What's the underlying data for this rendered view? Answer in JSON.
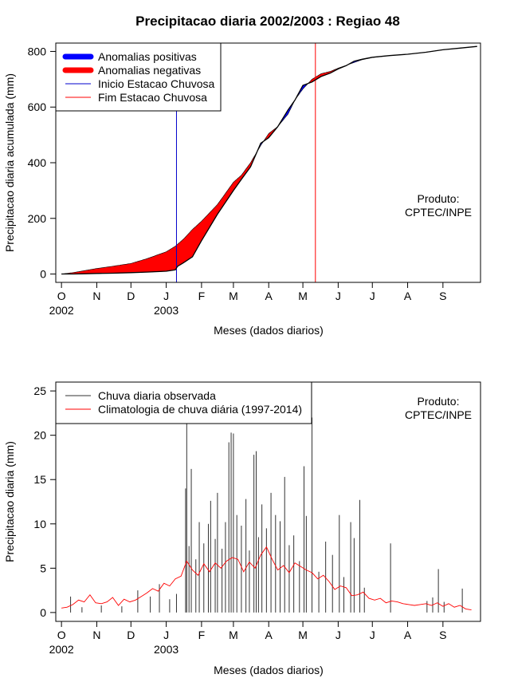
{
  "chart_data": [
    {
      "type": "area",
      "title": "Precipitacao diaria 2002/2003 : Regiao 48",
      "xlabel": "Meses (dados diarios)",
      "ylabel": "Precipitacao diaria acumulada (mm)",
      "ylim": [
        -30,
        830
      ],
      "yticks": [
        0,
        200,
        400,
        600,
        800
      ],
      "xlim_days": [
        -5,
        368
      ],
      "month_ticks": [
        {
          "label": "O",
          "day": 0
        },
        {
          "label": "N",
          "day": 31
        },
        {
          "label": "D",
          "day": 61
        },
        {
          "label": "J",
          "day": 92
        },
        {
          "label": "F",
          "day": 123
        },
        {
          "label": "M",
          "day": 151
        },
        {
          "label": "A",
          "day": 182
        },
        {
          "label": "M",
          "day": 212
        },
        {
          "label": "J",
          "day": 243
        },
        {
          "label": "J",
          "day": 273
        },
        {
          "label": "A",
          "day": 304
        },
        {
          "label": "S",
          "day": 335
        }
      ],
      "year_ticks": [
        {
          "label": "2002",
          "day": 0
        },
        {
          "label": "2003",
          "day": 92
        }
      ],
      "legend": [
        {
          "label": "Anomalias positivas",
          "color": "#0000ff"
        },
        {
          "label": "Anomalias negativas",
          "color": "#ff0000"
        },
        {
          "label": "Inicio Estacao Chuvosa",
          "color": "#0000cc"
        },
        {
          "label": "Fim Estacao Chuvosa",
          "color": "#ff0000"
        }
      ],
      "legend_position": "top-left",
      "credit": [
        "Produto:",
        "CPTEC/INPE"
      ],
      "rainy_season_start_day": 101,
      "rainy_season_end_day": 223,
      "observed_cumulative": {
        "days": [
          0,
          10,
          20,
          31,
          45,
          61,
          75,
          92,
          100,
          102,
          107,
          115,
          123,
          137,
          151,
          158,
          166,
          175,
          182,
          190,
          199,
          205,
          212,
          220,
          228,
          236,
          243,
          250,
          257,
          264,
          273,
          288,
          304,
          320,
          335,
          350,
          365
        ],
        "values": [
          0,
          0,
          1,
          2,
          3,
          5,
          7,
          10,
          15,
          28,
          40,
          62,
          120,
          215,
          300,
          340,
          385,
          470,
          490,
          530,
          590,
          625,
          678,
          690,
          710,
          722,
          737,
          749,
          765,
          772,
          779,
          785,
          790,
          797,
          806,
          812,
          818
        ]
      },
      "climatology_cumulative": {
        "days": [
          0,
          10,
          20,
          31,
          45,
          61,
          75,
          92,
          100,
          107,
          115,
          123,
          137,
          151,
          158,
          166,
          175,
          182,
          190,
          199,
          205,
          212,
          220,
          228,
          236,
          243,
          250,
          257,
          264,
          273,
          288,
          304,
          320,
          335,
          350,
          365
        ],
        "values": [
          0,
          5,
          12,
          20,
          28,
          38,
          55,
          80,
          100,
          125,
          160,
          190,
          250,
          330,
          355,
          400,
          462,
          505,
          530,
          575,
          625,
          665,
          700,
          720,
          728,
          740,
          750,
          760,
          770,
          778,
          785,
          790,
          797,
          806,
          812,
          818
        ]
      }
    },
    {
      "type": "line",
      "xlabel": "Meses (dados diarios)",
      "ylabel": "Precipitacao diaria (mm)",
      "ylim": [
        -1,
        26
      ],
      "yticks": [
        0,
        5,
        10,
        15,
        20,
        25
      ],
      "xlim_days": [
        -5,
        368
      ],
      "legend": [
        {
          "label": "Chuva diaria observada",
          "color": "#333333"
        },
        {
          "label": "Climatologia de chuva diária (1997-2014)",
          "color": "#ff0000"
        }
      ],
      "legend_position": "top-left",
      "credit": [
        "Produto:",
        "CPTEC/INPE"
      ],
      "observed_daily_peaks": [
        {
          "day": 8,
          "value": 1.8
        },
        {
          "day": 18,
          "value": 0.6
        },
        {
          "day": 35,
          "value": 0.8
        },
        {
          "day": 53,
          "value": 0.7
        },
        {
          "day": 67,
          "value": 2.5
        },
        {
          "day": 78,
          "value": 1.8
        },
        {
          "day": 86,
          "value": 3.2
        },
        {
          "day": 95,
          "value": 1.5
        },
        {
          "day": 101,
          "value": 2.1
        },
        {
          "day": 109,
          "value": 14.0
        },
        {
          "day": 110,
          "value": 25.0
        },
        {
          "day": 112,
          "value": 7.5
        },
        {
          "day": 114,
          "value": 16.2
        },
        {
          "day": 118,
          "value": 6.0
        },
        {
          "day": 121,
          "value": 10.2
        },
        {
          "day": 125,
          "value": 7.8
        },
        {
          "day": 129,
          "value": 10.0
        },
        {
          "day": 131,
          "value": 12.6
        },
        {
          "day": 135,
          "value": 8.3
        },
        {
          "day": 137,
          "value": 13.5
        },
        {
          "day": 141,
          "value": 7.2
        },
        {
          "day": 144,
          "value": 10.2
        },
        {
          "day": 147,
          "value": 19.2
        },
        {
          "day": 149,
          "value": 20.3
        },
        {
          "day": 151,
          "value": 20.2
        },
        {
          "day": 154,
          "value": 11.0
        },
        {
          "day": 158,
          "value": 9.8
        },
        {
          "day": 162,
          "value": 12.8
        },
        {
          "day": 165,
          "value": 7.0
        },
        {
          "day": 169,
          "value": 17.8
        },
        {
          "day": 171,
          "value": 18.2
        },
        {
          "day": 173,
          "value": 8.5
        },
        {
          "day": 176,
          "value": 12.2
        },
        {
          "day": 180,
          "value": 9.5
        },
        {
          "day": 184,
          "value": 13.5
        },
        {
          "day": 188,
          "value": 11.0
        },
        {
          "day": 192,
          "value": 10.3
        },
        {
          "day": 196,
          "value": 15.3
        },
        {
          "day": 200,
          "value": 7.6
        },
        {
          "day": 204,
          "value": 8.7
        },
        {
          "day": 209,
          "value": 5.8
        },
        {
          "day": 213,
          "value": 16.5
        },
        {
          "day": 215,
          "value": 10.9
        },
        {
          "day": 220,
          "value": 22.0
        },
        {
          "day": 226,
          "value": 4.6
        },
        {
          "day": 232,
          "value": 8.0
        },
        {
          "day": 238,
          "value": 6.5
        },
        {
          "day": 244,
          "value": 11.0
        },
        {
          "day": 248,
          "value": 4.0
        },
        {
          "day": 254,
          "value": 10.2
        },
        {
          "day": 257,
          "value": 8.4
        },
        {
          "day": 262,
          "value": 12.7
        },
        {
          "day": 266,
          "value": 2.8
        },
        {
          "day": 289,
          "value": 7.8
        },
        {
          "day": 321,
          "value": 1.3
        },
        {
          "day": 326,
          "value": 1.7
        },
        {
          "day": 331,
          "value": 4.9
        },
        {
          "day": 336,
          "value": 1.2
        },
        {
          "day": 352,
          "value": 2.7
        }
      ],
      "climatology_daily": {
        "days": [
          0,
          5,
          10,
          15,
          20,
          25,
          30,
          35,
          40,
          45,
          50,
          55,
          60,
          65,
          70,
          75,
          80,
          85,
          90,
          95,
          100,
          105,
          110,
          115,
          120,
          125,
          130,
          135,
          140,
          145,
          150,
          155,
          160,
          165,
          170,
          175,
          180,
          185,
          190,
          195,
          200,
          205,
          210,
          215,
          220,
          225,
          230,
          235,
          240,
          245,
          250,
          255,
          260,
          265,
          270,
          275,
          280,
          285,
          290,
          295,
          300,
          305,
          310,
          315,
          320,
          325,
          330,
          335,
          340,
          345,
          350,
          355,
          360
        ],
        "values": [
          0.5,
          0.6,
          0.9,
          1.4,
          1.2,
          2.0,
          1.1,
          1.0,
          1.2,
          1.7,
          0.8,
          1.5,
          1.2,
          1.4,
          1.8,
          2.2,
          2.7,
          2.4,
          3.3,
          3.0,
          3.8,
          4.1,
          5.8,
          4.8,
          4.2,
          5.5,
          4.6,
          5.6,
          5.0,
          5.8,
          6.2,
          6.0,
          4.6,
          5.7,
          5.0,
          6.5,
          7.4,
          6.0,
          4.8,
          5.3,
          4.5,
          5.6,
          5.2,
          4.8,
          4.5,
          3.8,
          4.2,
          3.5,
          2.6,
          3.0,
          2.8,
          1.9,
          2.0,
          2.3,
          1.6,
          1.4,
          1.6,
          1.1,
          1.3,
          1.2,
          1.0,
          0.9,
          0.8,
          0.9,
          1.0,
          0.8,
          1.1,
          0.7,
          1.0,
          0.6,
          0.8,
          0.4,
          0.3
        ]
      },
      "credit_position": "top-right"
    }
  ]
}
